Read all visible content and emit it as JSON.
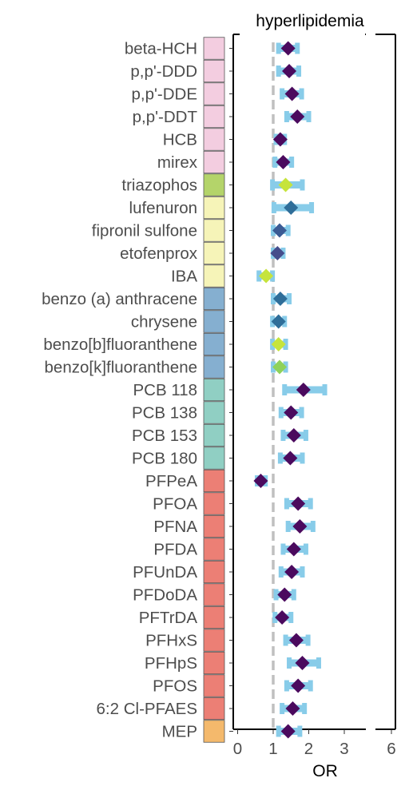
{
  "chart_data": {
    "type": "forest",
    "title": "hyperlipidemia",
    "xlabel": "OR",
    "xlim": [
      -0.15,
      6.1
    ],
    "axis_break": [
      3.6,
      5.65
    ],
    "x_ticks": [
      "0",
      "1",
      "2",
      "3",
      "6"
    ],
    "reference_line": 1,
    "group_colors": {
      "organochlorine": "#f3cde0",
      "triazophos": "#b4d46a",
      "pyrethroid_misc": "#f6f4b8",
      "pah": "#85afd0",
      "pcb": "#90cfc3",
      "pfas": "#ec7f75",
      "phthalate": "#f4b96c"
    },
    "ci_color": "#88cce9",
    "ref_line_color": "#c0c0c0",
    "rows": [
      {
        "label": "beta-HCH",
        "group": "organochlorine",
        "or": 1.42,
        "lo": 1.15,
        "hi": 1.68,
        "color": "#4b0a5e"
      },
      {
        "label": "p,p'-DDD",
        "group": "organochlorine",
        "or": 1.45,
        "lo": 1.15,
        "hi": 1.72,
        "color": "#4b0a5e"
      },
      {
        "label": "p,p'-DDE",
        "group": "organochlorine",
        "or": 1.53,
        "lo": 1.25,
        "hi": 1.8,
        "color": "#4b0a5e"
      },
      {
        "label": "p,p'-DDT",
        "group": "organochlorine",
        "or": 1.68,
        "lo": 1.38,
        "hi": 2.0,
        "color": "#4b0a5e"
      },
      {
        "label": "HCB",
        "group": "organochlorine",
        "or": 1.2,
        "lo": 1.08,
        "hi": 1.32,
        "color": "#4b0a5e"
      },
      {
        "label": "mirex",
        "group": "organochlorine",
        "or": 1.28,
        "lo": 1.05,
        "hi": 1.52,
        "color": "#4b0a5e"
      },
      {
        "label": "triazophos",
        "group": "triazophos",
        "or": 1.35,
        "lo": 0.98,
        "hi": 1.82,
        "color": "#c6e43c"
      },
      {
        "label": "lufenuron",
        "group": "pyrethroid_misc",
        "or": 1.5,
        "lo": 1.02,
        "hi": 2.08,
        "color": "#2f6e99"
      },
      {
        "label": "fipronil sulfone",
        "group": "pyrethroid_misc",
        "or": 1.18,
        "lo": 1.0,
        "hi": 1.42,
        "color": "#3b5b94"
      },
      {
        "label": "etofenprox",
        "group": "pyrethroid_misc",
        "or": 1.12,
        "lo": 1.0,
        "hi": 1.28,
        "color": "#454d8c"
      },
      {
        "label": "IBA",
        "group": "pyrethroid_misc",
        "or": 0.8,
        "lo": 0.6,
        "hi": 0.98,
        "color": "#c6e43c"
      },
      {
        "label": "benzo (a) anthracene",
        "group": "pah",
        "or": 1.2,
        "lo": 1.0,
        "hi": 1.45,
        "color": "#2f6e99"
      },
      {
        "label": "chrysene",
        "group": "pah",
        "or": 1.15,
        "lo": 0.98,
        "hi": 1.32,
        "color": "#2f6e99"
      },
      {
        "label": "benzo[b]fluoranthene",
        "group": "pah",
        "or": 1.15,
        "lo": 0.98,
        "hi": 1.35,
        "color": "#c6e43c"
      },
      {
        "label": "benzo[k]fluoranthene",
        "group": "pah",
        "or": 1.18,
        "lo": 1.0,
        "hi": 1.35,
        "color": "#8fd25a"
      },
      {
        "label": "PCB 118",
        "group": "pcb",
        "or": 1.85,
        "lo": 1.32,
        "hi": 2.45,
        "color": "#4b0a5e"
      },
      {
        "label": "PCB 138",
        "group": "pcb",
        "or": 1.5,
        "lo": 1.22,
        "hi": 1.8,
        "color": "#4b0a5e"
      },
      {
        "label": "PCB 153",
        "group": "pcb",
        "or": 1.58,
        "lo": 1.28,
        "hi": 1.92,
        "color": "#4b0a5e"
      },
      {
        "label": "PCB 180",
        "group": "pcb",
        "or": 1.48,
        "lo": 1.2,
        "hi": 1.82,
        "color": "#4b0a5e"
      },
      {
        "label": "PFPeA",
        "group": "pfas",
        "or": 0.65,
        "lo": 0.55,
        "hi": 0.78,
        "color": "#4b0a5e"
      },
      {
        "label": "PFOA",
        "group": "pfas",
        "or": 1.7,
        "lo": 1.38,
        "hi": 2.05,
        "color": "#4b0a5e"
      },
      {
        "label": "PFNA",
        "group": "pfas",
        "or": 1.75,
        "lo": 1.42,
        "hi": 2.12,
        "color": "#4b0a5e"
      },
      {
        "label": "PFDA",
        "group": "pfas",
        "or": 1.58,
        "lo": 1.28,
        "hi": 1.92,
        "color": "#4b0a5e"
      },
      {
        "label": "PFUnDA",
        "group": "pfas",
        "or": 1.52,
        "lo": 1.22,
        "hi": 1.82,
        "color": "#4b0a5e"
      },
      {
        "label": "PFDoDA",
        "group": "pfas",
        "or": 1.32,
        "lo": 1.08,
        "hi": 1.58,
        "color": "#4b0a5e"
      },
      {
        "label": "PFTrDA",
        "group": "pfas",
        "or": 1.25,
        "lo": 1.05,
        "hi": 1.5,
        "color": "#4b0a5e"
      },
      {
        "label": "PFHxS",
        "group": "pfas",
        "or": 1.65,
        "lo": 1.35,
        "hi": 1.98,
        "color": "#4b0a5e"
      },
      {
        "label": "PFHpS",
        "group": "pfas",
        "or": 1.82,
        "lo": 1.45,
        "hi": 2.28,
        "color": "#4b0a5e"
      },
      {
        "label": "PFOS",
        "group": "pfas",
        "or": 1.7,
        "lo": 1.38,
        "hi": 2.05,
        "color": "#4b0a5e"
      },
      {
        "label": "6:2 Cl-PFAES",
        "group": "pfas",
        "or": 1.55,
        "lo": 1.25,
        "hi": 1.88,
        "color": "#4b0a5e"
      },
      {
        "label": "MEP",
        "group": "phthalate",
        "or": 1.42,
        "lo": 1.15,
        "hi": 1.75,
        "color": "#4b0a5e"
      }
    ]
  }
}
